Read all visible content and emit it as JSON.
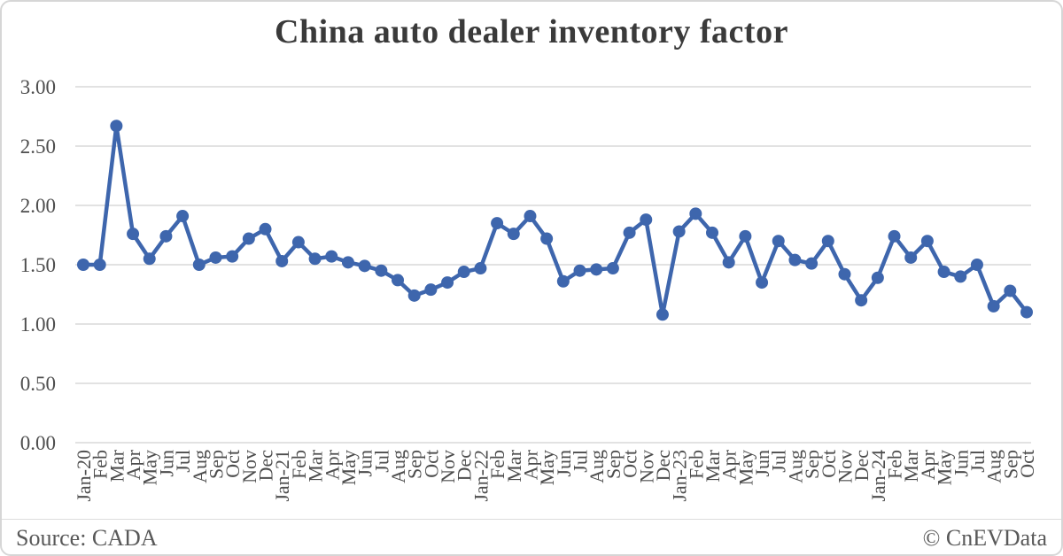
{
  "title": "China auto dealer inventory factor",
  "footer": {
    "source": "Source: CADA",
    "credit": "© CnEVData"
  },
  "chart_data": {
    "type": "line",
    "title": "China auto dealer inventory factor",
    "series_name": "China auto dealer inventory factor",
    "categories": [
      "Jan-20",
      "Feb",
      "Mar",
      "Apr",
      "May",
      "Jun",
      "Jul",
      "Aug",
      "Sep",
      "Oct",
      "Nov",
      "Dec",
      "Jan-21",
      "Feb",
      "Mar",
      "Apr",
      "May",
      "Jun",
      "Jul",
      "Aug",
      "Sep",
      "Oct",
      "Nov",
      "Dec",
      "Jan-22",
      "Feb",
      "Mar",
      "Apr",
      "May",
      "Jun",
      "Jul",
      "Aug",
      "Sep",
      "Oct",
      "Nov",
      "Dec",
      "Jan-23",
      "Feb",
      "Mar",
      "Apr",
      "May",
      "Jun",
      "Jul",
      "Aug",
      "Sep",
      "Oct",
      "Nov",
      "Dec",
      "Jan-24",
      "Feb",
      "Mar",
      "Apr",
      "May",
      "Jun",
      "Jul",
      "Aug",
      "Sep",
      "Oct"
    ],
    "values": [
      1.5,
      1.5,
      2.67,
      1.76,
      1.55,
      1.74,
      1.91,
      1.5,
      1.56,
      1.57,
      1.72,
      1.8,
      1.53,
      1.69,
      1.55,
      1.57,
      1.52,
      1.49,
      1.45,
      1.37,
      1.24,
      1.29,
      1.35,
      1.44,
      1.47,
      1.85,
      1.76,
      1.91,
      1.72,
      1.36,
      1.45,
      1.46,
      1.47,
      1.77,
      1.88,
      1.08,
      1.78,
      1.93,
      1.77,
      1.52,
      1.74,
      1.35,
      1.7,
      1.54,
      1.51,
      1.7,
      1.42,
      1.2,
      1.39,
      1.74,
      1.56,
      1.7,
      1.44,
      1.4,
      1.5,
      1.15,
      1.28,
      1.1
    ],
    "ylim": [
      0,
      3.0
    ],
    "y_tick_labels": [
      "0.00",
      "0.50",
      "1.00",
      "1.50",
      "2.00",
      "2.50",
      "3.00"
    ],
    "grid": true,
    "legend": "none",
    "line_color": "#3E66AD",
    "gridline_color": "#D9D9D9",
    "xlabel": "",
    "ylabel": ""
  }
}
